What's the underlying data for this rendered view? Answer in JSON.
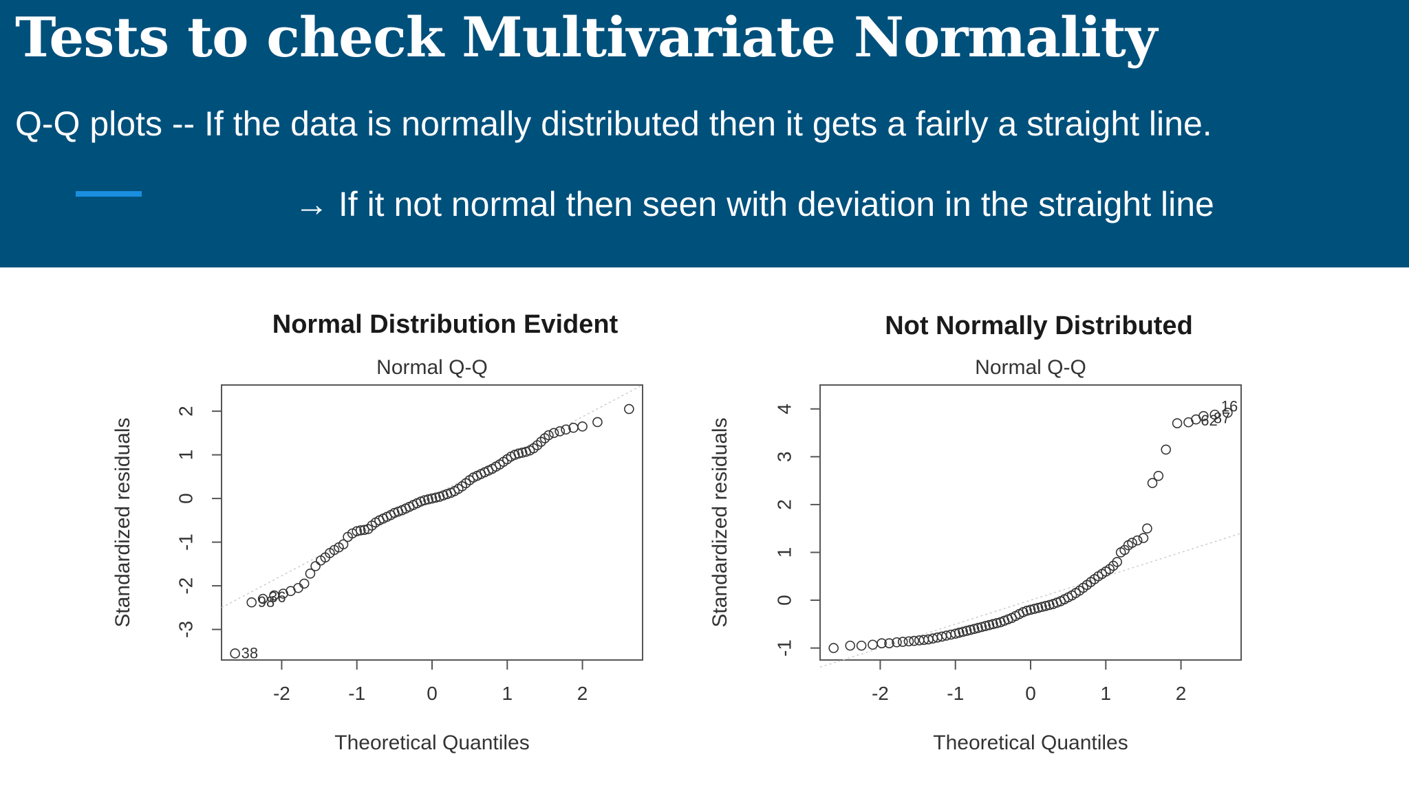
{
  "slide": {
    "title": "Tests to check Multivariate Normality",
    "line1": "Q-Q plots -- If the data is normally distributed then it gets a fairly a straight line.",
    "line2": "→ If it not normal then seen with deviation in the straight line",
    "colors": {
      "header_bg": "#00507c",
      "accent": "#1a8fe0",
      "text": "#ffffff"
    }
  },
  "chart_data": [
    {
      "type": "scatter",
      "title": "Normal Distribution Evident",
      "subtitle": "Normal Q-Q",
      "xlabel": "Theoretical Quantiles",
      "ylabel": "Standardized residuals",
      "xlim": [
        -2.8,
        2.8
      ],
      "ylim": [
        -3.7,
        2.6
      ],
      "xticks": [
        -2,
        -1,
        0,
        1,
        2
      ],
      "yticks": [
        -3,
        -2,
        -1,
        0,
        1,
        2
      ],
      "grid": false,
      "reference_line": [
        [
          -2.8,
          -2.5
        ],
        [
          2.8,
          2.6
        ]
      ],
      "point_labels": [
        {
          "text": "38",
          "x": -2.62,
          "y": -3.55
        },
        {
          "text": "98",
          "x": -2.4,
          "y": -2.38
        },
        {
          "text": "36",
          "x": -2.25,
          "y": -2.27
        }
      ],
      "points": [
        [
          -2.62,
          -3.55
        ],
        [
          -2.4,
          -2.38
        ],
        [
          -2.25,
          -2.3
        ],
        [
          -2.1,
          -2.22
        ],
        [
          -1.98,
          -2.18
        ],
        [
          -1.88,
          -2.12
        ],
        [
          -1.78,
          -2.05
        ],
        [
          -1.7,
          -1.95
        ],
        [
          -1.62,
          -1.72
        ],
        [
          -1.55,
          -1.55
        ],
        [
          -1.48,
          -1.42
        ],
        [
          -1.42,
          -1.35
        ],
        [
          -1.36,
          -1.25
        ],
        [
          -1.3,
          -1.18
        ],
        [
          -1.24,
          -1.12
        ],
        [
          -1.18,
          -1.05
        ],
        [
          -1.12,
          -0.88
        ],
        [
          -1.06,
          -0.8
        ],
        [
          -1.0,
          -0.75
        ],
        [
          -0.95,
          -0.73
        ],
        [
          -0.9,
          -0.72
        ],
        [
          -0.85,
          -0.7
        ],
        [
          -0.8,
          -0.62
        ],
        [
          -0.75,
          -0.55
        ],
        [
          -0.7,
          -0.5
        ],
        [
          -0.65,
          -0.46
        ],
        [
          -0.6,
          -0.42
        ],
        [
          -0.55,
          -0.38
        ],
        [
          -0.5,
          -0.33
        ],
        [
          -0.45,
          -0.3
        ],
        [
          -0.4,
          -0.27
        ],
        [
          -0.35,
          -0.23
        ],
        [
          -0.3,
          -0.19
        ],
        [
          -0.25,
          -0.15
        ],
        [
          -0.2,
          -0.11
        ],
        [
          -0.15,
          -0.07
        ],
        [
          -0.1,
          -0.04
        ],
        [
          -0.05,
          -0.02
        ],
        [
          0.0,
          0.0
        ],
        [
          0.05,
          0.02
        ],
        [
          0.1,
          0.04
        ],
        [
          0.15,
          0.07
        ],
        [
          0.2,
          0.1
        ],
        [
          0.25,
          0.13
        ],
        [
          0.3,
          0.17
        ],
        [
          0.35,
          0.22
        ],
        [
          0.4,
          0.28
        ],
        [
          0.45,
          0.35
        ],
        [
          0.5,
          0.42
        ],
        [
          0.55,
          0.48
        ],
        [
          0.6,
          0.52
        ],
        [
          0.65,
          0.56
        ],
        [
          0.7,
          0.6
        ],
        [
          0.75,
          0.64
        ],
        [
          0.8,
          0.68
        ],
        [
          0.85,
          0.73
        ],
        [
          0.9,
          0.78
        ],
        [
          0.95,
          0.84
        ],
        [
          1.0,
          0.9
        ],
        [
          1.05,
          0.96
        ],
        [
          1.1,
          1.0
        ],
        [
          1.15,
          1.03
        ],
        [
          1.2,
          1.05
        ],
        [
          1.25,
          1.07
        ],
        [
          1.3,
          1.1
        ],
        [
          1.35,
          1.15
        ],
        [
          1.4,
          1.22
        ],
        [
          1.45,
          1.3
        ],
        [
          1.5,
          1.38
        ],
        [
          1.55,
          1.45
        ],
        [
          1.62,
          1.5
        ],
        [
          1.7,
          1.54
        ],
        [
          1.78,
          1.58
        ],
        [
          1.88,
          1.62
        ],
        [
          2.0,
          1.65
        ],
        [
          2.2,
          1.75
        ],
        [
          2.62,
          2.05
        ]
      ]
    },
    {
      "type": "scatter",
      "title": "Not Normally Distributed",
      "subtitle": "Normal Q-Q",
      "xlabel": "Theoretical Quantiles",
      "ylabel": "Standardized residuals",
      "xlim": [
        -2.8,
        2.8
      ],
      "ylim": [
        -1.25,
        4.5
      ],
      "xticks": [
        -2,
        -1,
        0,
        1,
        2
      ],
      "yticks": [
        -1,
        0,
        1,
        2,
        3,
        4
      ],
      "grid": false,
      "reference_line": [
        [
          -2.8,
          -1.4
        ],
        [
          2.8,
          1.4
        ]
      ],
      "point_labels": [
        {
          "text": "16",
          "x": 2.45,
          "y": 4.05
        },
        {
          "text": "62",
          "x": 2.18,
          "y": 3.75
        },
        {
          "text": "87",
          "x": 2.35,
          "y": 3.8
        }
      ],
      "points": [
        [
          -2.62,
          -1.0
        ],
        [
          -2.4,
          -0.95
        ],
        [
          -2.25,
          -0.95
        ],
        [
          -2.1,
          -0.93
        ],
        [
          -1.98,
          -0.9
        ],
        [
          -1.88,
          -0.9
        ],
        [
          -1.78,
          -0.88
        ],
        [
          -1.7,
          -0.87
        ],
        [
          -1.62,
          -0.86
        ],
        [
          -1.55,
          -0.85
        ],
        [
          -1.48,
          -0.84
        ],
        [
          -1.42,
          -0.83
        ],
        [
          -1.36,
          -0.82
        ],
        [
          -1.3,
          -0.8
        ],
        [
          -1.24,
          -0.78
        ],
        [
          -1.18,
          -0.76
        ],
        [
          -1.12,
          -0.74
        ],
        [
          -1.06,
          -0.72
        ],
        [
          -1.0,
          -0.7
        ],
        [
          -0.95,
          -0.68
        ],
        [
          -0.9,
          -0.66
        ],
        [
          -0.85,
          -0.64
        ],
        [
          -0.8,
          -0.62
        ],
        [
          -0.75,
          -0.6
        ],
        [
          -0.7,
          -0.58
        ],
        [
          -0.65,
          -0.56
        ],
        [
          -0.6,
          -0.54
        ],
        [
          -0.55,
          -0.52
        ],
        [
          -0.5,
          -0.5
        ],
        [
          -0.45,
          -0.48
        ],
        [
          -0.4,
          -0.46
        ],
        [
          -0.35,
          -0.43
        ],
        [
          -0.3,
          -0.4
        ],
        [
          -0.25,
          -0.37
        ],
        [
          -0.2,
          -0.33
        ],
        [
          -0.15,
          -0.29
        ],
        [
          -0.1,
          -0.25
        ],
        [
          -0.05,
          -0.22
        ],
        [
          0.0,
          -0.2
        ],
        [
          0.05,
          -0.18
        ],
        [
          0.1,
          -0.16
        ],
        [
          0.15,
          -0.14
        ],
        [
          0.2,
          -0.12
        ],
        [
          0.25,
          -0.1
        ],
        [
          0.3,
          -0.08
        ],
        [
          0.35,
          -0.05
        ],
        [
          0.4,
          -0.02
        ],
        [
          0.45,
          0.02
        ],
        [
          0.5,
          0.06
        ],
        [
          0.55,
          0.1
        ],
        [
          0.6,
          0.15
        ],
        [
          0.65,
          0.2
        ],
        [
          0.7,
          0.26
        ],
        [
          0.75,
          0.32
        ],
        [
          0.8,
          0.38
        ],
        [
          0.85,
          0.44
        ],
        [
          0.9,
          0.5
        ],
        [
          0.95,
          0.55
        ],
        [
          1.0,
          0.6
        ],
        [
          1.05,
          0.65
        ],
        [
          1.1,
          0.72
        ],
        [
          1.15,
          0.8
        ],
        [
          1.2,
          1.0
        ],
        [
          1.25,
          1.05
        ],
        [
          1.3,
          1.15
        ],
        [
          1.35,
          1.2
        ],
        [
          1.42,
          1.25
        ],
        [
          1.5,
          1.3
        ],
        [
          1.55,
          1.5
        ],
        [
          1.62,
          2.45
        ],
        [
          1.7,
          2.6
        ],
        [
          1.8,
          3.15
        ],
        [
          1.95,
          3.7
        ],
        [
          2.1,
          3.72
        ],
        [
          2.2,
          3.78
        ],
        [
          2.3,
          3.85
        ],
        [
          2.45,
          3.88
        ],
        [
          2.62,
          3.92
        ]
      ]
    }
  ]
}
